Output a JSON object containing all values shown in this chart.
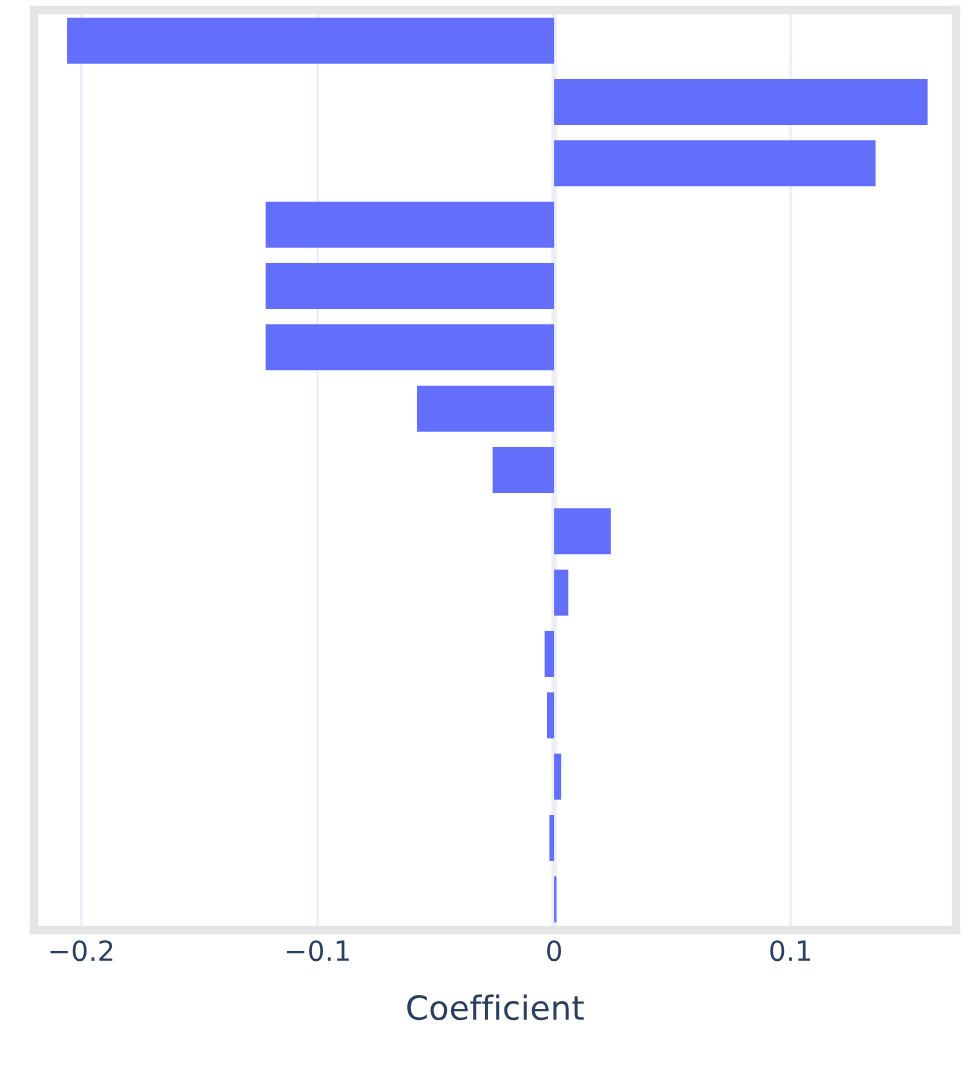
{
  "chart_data": {
    "type": "bar",
    "orientation": "horizontal",
    "xlabel": "Coefficient",
    "categories": [
      null,
      null,
      null,
      null,
      null,
      null,
      null,
      null,
      null,
      null,
      null,
      null,
      null,
      null,
      null
    ],
    "values": [
      -0.206,
      0.158,
      0.136,
      -0.122,
      -0.122,
      -0.122,
      -0.058,
      -0.026,
      0.024,
      0.006,
      -0.004,
      -0.003,
      0.003,
      -0.002,
      0.001
    ],
    "color": "#636efa",
    "xlim": [
      -0.22,
      0.17
    ],
    "xticks": [
      {
        "value": -0.2,
        "label": "−0.2"
      },
      {
        "value": -0.1,
        "label": "−0.1"
      },
      0,
      0.1
    ],
    "grid": "x"
  }
}
